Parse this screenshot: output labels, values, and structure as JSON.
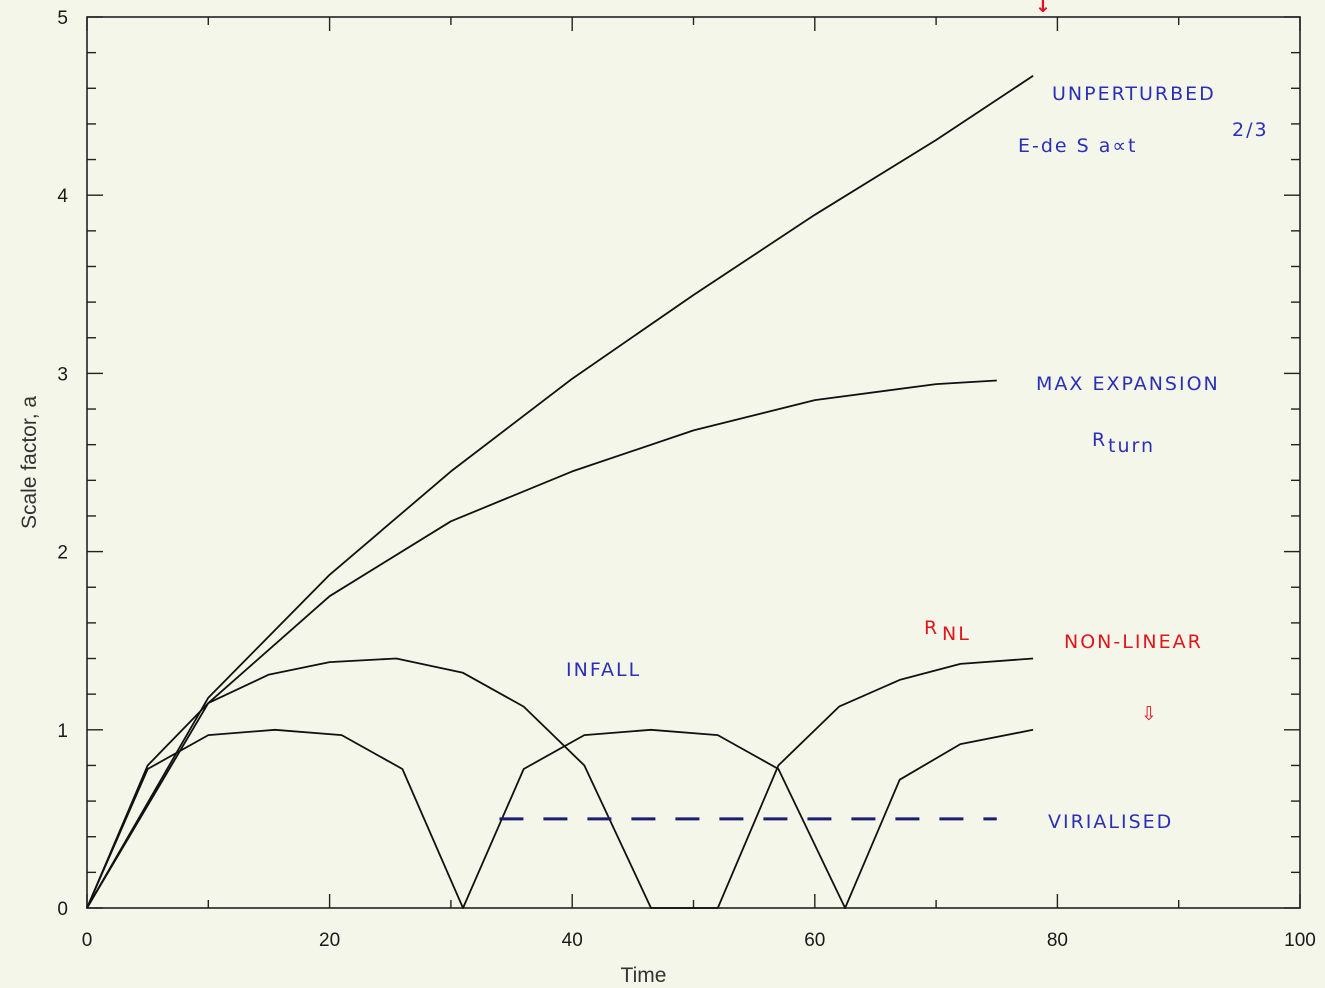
{
  "chart_data": {
    "type": "line",
    "xlabel": "Time",
    "ylabel": "Scale factor, a",
    "xlim": [
      0,
      100
    ],
    "ylim": [
      0,
      5
    ],
    "x_ticks": [
      "0",
      "20",
      "40",
      "60",
      "80",
      "100"
    ],
    "y_ticks": [
      "0",
      "1",
      "2",
      "3",
      "4",
      "5"
    ],
    "grid": false,
    "series": [
      {
        "x": [
          0,
          10,
          20,
          30,
          40,
          50,
          60,
          70,
          78
        ],
        "y": [
          0,
          1.18,
          1.87,
          2.45,
          2.97,
          3.44,
          3.89,
          4.31,
          4.67
        ]
      },
      {
        "x": [
          0,
          10,
          20,
          30,
          40,
          50,
          60,
          70,
          75
        ],
        "y": [
          0,
          1.15,
          1.75,
          2.17,
          2.45,
          2.68,
          2.85,
          2.94,
          2.96
        ]
      },
      {
        "x": [
          0,
          5,
          10,
          15,
          20,
          25.5,
          31,
          36,
          41,
          46.5,
          52,
          57,
          62,
          67,
          72,
          78
        ],
        "y": [
          0,
          0.8,
          1.15,
          1.31,
          1.38,
          1.4,
          1.32,
          1.13,
          0.8,
          0.0,
          0.0,
          0.8,
          1.13,
          1.28,
          1.37,
          1.4
        ]
      },
      {
        "x": [
          0,
          5,
          10,
          15.5,
          21,
          26,
          31,
          36,
          41,
          46.5,
          52,
          57,
          62.5,
          67,
          72,
          78
        ],
        "y": [
          0,
          0.78,
          0.97,
          1.0,
          0.97,
          0.78,
          0.0,
          0.78,
          0.97,
          1.0,
          0.97,
          0.78,
          0.0,
          0.72,
          0.92,
          1.0
        ]
      }
    ],
    "virialised_level": 0.5,
    "annotations": {
      "unperturbed_1": "UNPERTURBED",
      "unperturbed_2": "E-de S  a∝t",
      "unperturbed_exp": "2/3",
      "max_expansion_1": "MAX EXPANSION",
      "max_expansion_2": "R",
      "max_expansion_sub": "turn",
      "infall": "INFALL",
      "rnl": "R",
      "rnl_sub": "NL",
      "non_linear": "NON-LINEAR",
      "non_linear_arrow": "⇩",
      "virialised": "VIRIALISED",
      "top_arrow": "↓"
    },
    "colors": {
      "curves": "#111111",
      "annotation_blue": "#2b2fb8",
      "annotation_red": "#e0161c",
      "axis": "#222222",
      "background": "#f4f6ea"
    }
  }
}
